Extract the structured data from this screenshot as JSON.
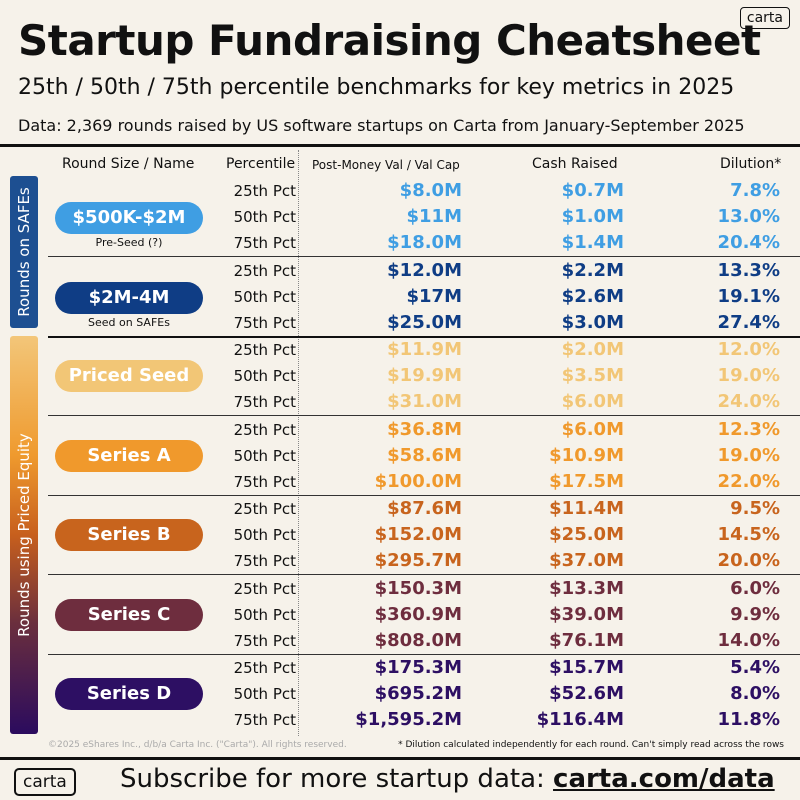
{
  "logo_text": "carta",
  "title": "Startup Fundraising Cheatsheet",
  "subtitle": "25th / 50th / 75th percentile benchmarks for key metrics in 2025",
  "source": "Data: 2,369 rounds raised by US software startups on Carta from January-September 2025",
  "headers": {
    "round": "Round Size / Name",
    "percentile": "Percentile",
    "valuation": "Post-Money Val / Val Cap",
    "cash": "Cash Raised",
    "dilution": "Dilution*"
  },
  "sections": {
    "safe": "Rounds on SAFEs",
    "priced": "Rounds using Priced Equity"
  },
  "groups": [
    {
      "name": "$500K-$2M",
      "sub": "Pre-Seed (?)",
      "color": "#3f9ee3",
      "rows": [
        {
          "pct": "25th Pct",
          "val": "$8.0M",
          "cash": "$0.7M",
          "dil": "7.8%"
        },
        {
          "pct": "50th Pct",
          "val": "$11M",
          "cash": "$1.0M",
          "dil": "13.0%"
        },
        {
          "pct": "75th Pct",
          "val": "$18.0M",
          "cash": "$1.4M",
          "dil": "20.4%"
        }
      ]
    },
    {
      "name": "$2M-4M",
      "sub": "Seed on SAFEs",
      "color": "#0f3d85",
      "rows": [
        {
          "pct": "25th Pct",
          "val": "$12.0M",
          "cash": "$2.2M",
          "dil": "13.3%"
        },
        {
          "pct": "50th Pct",
          "val": "$17M",
          "cash": "$2.6M",
          "dil": "19.1%"
        },
        {
          "pct": "75th Pct",
          "val": "$25.0M",
          "cash": "$3.0M",
          "dil": "27.4%"
        }
      ]
    },
    {
      "name": "Priced Seed",
      "sub": "",
      "color": "#f2c676",
      "rows": [
        {
          "pct": "25th Pct",
          "val": "$11.9M",
          "cash": "$2.0M",
          "dil": "12.0%"
        },
        {
          "pct": "50th Pct",
          "val": "$19.9M",
          "cash": "$3.5M",
          "dil": "19.0%"
        },
        {
          "pct": "75th Pct",
          "val": "$31.0M",
          "cash": "$6.0M",
          "dil": "24.0%"
        }
      ]
    },
    {
      "name": "Series A",
      "sub": "",
      "color": "#f0992c",
      "rows": [
        {
          "pct": "25th Pct",
          "val": "$36.8M",
          "cash": "$6.0M",
          "dil": "12.3%"
        },
        {
          "pct": "50th Pct",
          "val": "$58.6M",
          "cash": "$10.9M",
          "dil": "19.0%"
        },
        {
          "pct": "75th Pct",
          "val": "$100.0M",
          "cash": "$17.5M",
          "dil": "22.0%"
        }
      ]
    },
    {
      "name": "Series B",
      "sub": "",
      "color": "#c8641d",
      "rows": [
        {
          "pct": "25th Pct",
          "val": "$87.6M",
          "cash": "$11.4M",
          "dil": "9.5%"
        },
        {
          "pct": "50th Pct",
          "val": "$152.0M",
          "cash": "$25.0M",
          "dil": "14.5%"
        },
        {
          "pct": "75th Pct",
          "val": "$295.7M",
          "cash": "$37.0M",
          "dil": "20.0%"
        }
      ]
    },
    {
      "name": "Series C",
      "sub": "",
      "color": "#6e2d3e",
      "rows": [
        {
          "pct": "25th Pct",
          "val": "$150.3M",
          "cash": "$13.3M",
          "dil": "6.0%"
        },
        {
          "pct": "50th Pct",
          "val": "$360.9M",
          "cash": "$39.0M",
          "dil": "9.9%"
        },
        {
          "pct": "75th Pct",
          "val": "$808.0M",
          "cash": "$76.1M",
          "dil": "14.0%"
        }
      ]
    },
    {
      "name": "Series D",
      "sub": "",
      "color": "#2d0f63",
      "rows": [
        {
          "pct": "25th Pct",
          "val": "$175.3M",
          "cash": "$15.7M",
          "dil": "5.4%"
        },
        {
          "pct": "50th Pct",
          "val": "$695.2M",
          "cash": "$52.6M",
          "dil": "8.0%"
        },
        {
          "pct": "75th Pct",
          "val": "$1,595.2M",
          "cash": "$116.4M",
          "dil": "11.8%"
        }
      ]
    }
  ],
  "footer": {
    "copyright": "©2025 eShares Inc., d/b/a Carta Inc. (\"Carta\"). All rights reserved.",
    "note": "* Dilution calculated independently for each round. Can't simply read across the rows",
    "subscribe_prefix": "Subscribe for more startup data: ",
    "subscribe_link": "carta.com/data"
  }
}
